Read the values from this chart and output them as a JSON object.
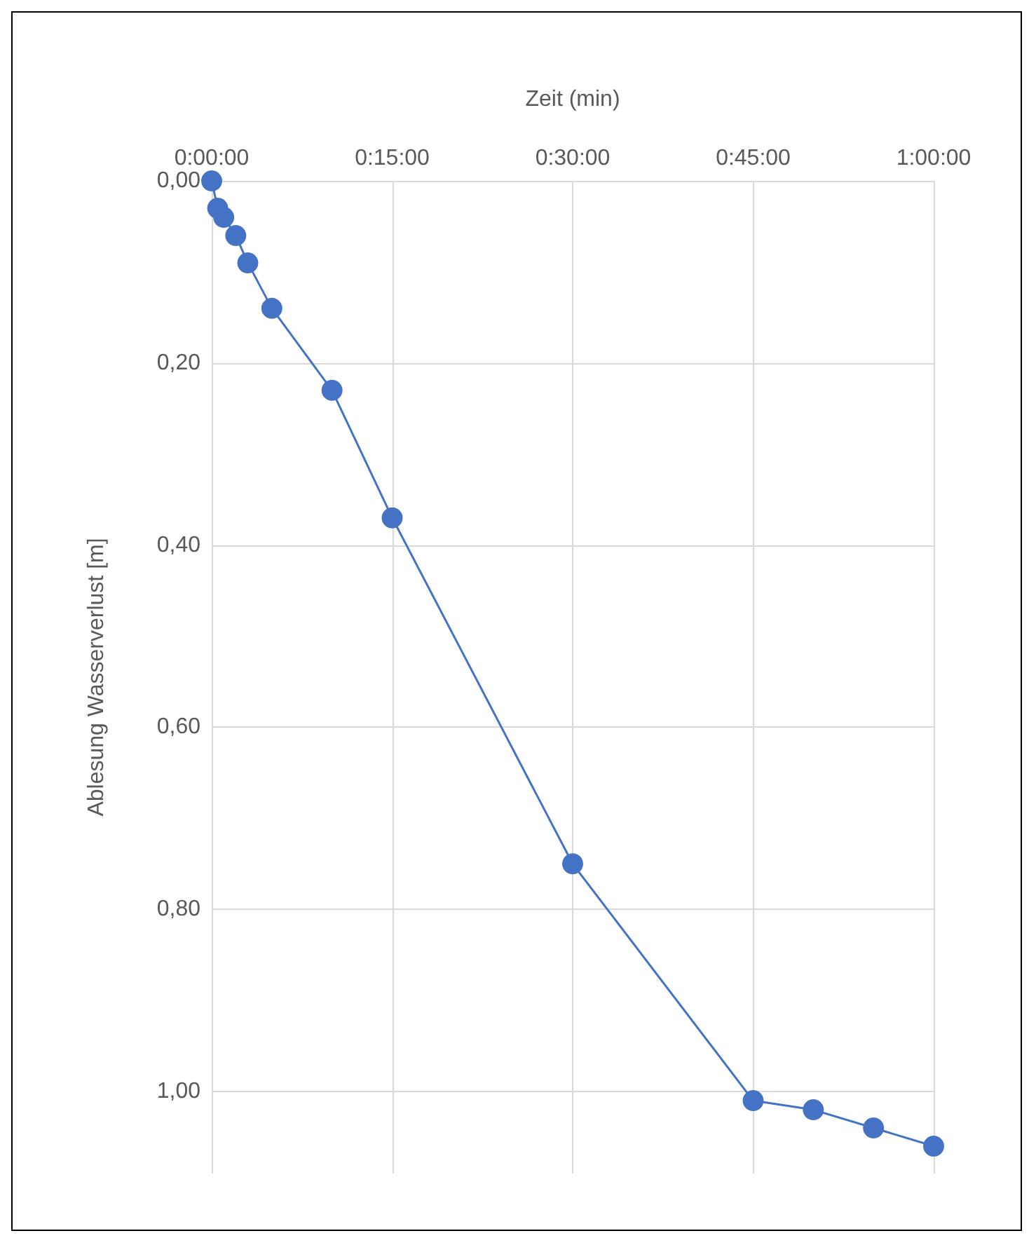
{
  "chart_data": {
    "type": "line",
    "xlabel": "Zeit (min)",
    "ylabel": "Ablesung Wasserverlust [m]",
    "x": [
      0,
      0.5,
      1,
      2,
      3,
      5,
      10,
      15,
      30,
      45,
      50,
      55,
      60
    ],
    "series": [
      {
        "color": "#4472c4",
        "values": [
          0.0,
          0.03,
          0.04,
          0.06,
          0.09,
          0.14,
          0.23,
          0.37,
          0.75,
          1.01,
          1.02,
          1.04,
          1.06
        ]
      }
    ],
    "xlim": [
      0,
      60
    ],
    "xticks": [
      {
        "value": 0,
        "label": "0:00:00"
      },
      {
        "value": 15,
        "label": "0:15:00"
      },
      {
        "value": 30,
        "label": "0:30:00"
      },
      {
        "value": 45,
        "label": "0:45:00"
      },
      {
        "value": 60,
        "label": "1:00:00"
      }
    ],
    "ylim": [
      1.09,
      0
    ],
    "yticks": [
      {
        "value": 0,
        "label": "0,00"
      },
      {
        "value": 0.2,
        "label": "0,20"
      },
      {
        "value": 0.4,
        "label": "0,40"
      },
      {
        "value": 0.6,
        "label": "0,60"
      },
      {
        "value": 0.8,
        "label": "0,80"
      },
      {
        "value": 1.0,
        "label": "1,00"
      }
    ],
    "grid": true,
    "marker": "circle",
    "line_style": "solid"
  }
}
